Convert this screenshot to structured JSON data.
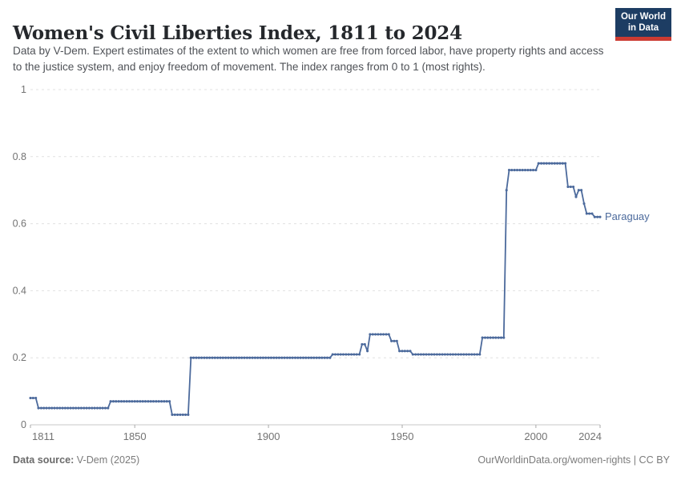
{
  "header": {
    "title": "Women's Civil Liberties Index, 1811 to 2024",
    "subtitle": "Data by V-Dem. Expert estimates of the extent to which women are free from forced labor, have property rights and access to the justice system, and enjoy freedom of movement. The index ranges from 0 to 1 (most rights)."
  },
  "logo": {
    "line1": "Our World",
    "line2": "in Data",
    "bg_color": "#1d3d63",
    "bar_color": "#cc3b32"
  },
  "footer": {
    "source_label": "Data source:",
    "source_value": " V-Dem (2025)",
    "right_text": "OurWorldinData.org/women-rights | CC BY"
  },
  "chart_data": {
    "type": "line",
    "title": "Women's Civil Liberties Index, 1811 to 2024",
    "xlabel": "",
    "ylabel": "",
    "xlim": [
      1811,
      2024
    ],
    "ylim": [
      0,
      1
    ],
    "x_ticks": [
      1811,
      1850,
      1900,
      1950,
      2000,
      2024
    ],
    "y_ticks": [
      "0",
      "0.2",
      "0.4",
      "0.6",
      "0.8",
      "1"
    ],
    "grid": "horizontal-dashed",
    "legend": "end-of-line-label",
    "colors": {
      "line": "#4C6A9C",
      "gridline": "#e0e0e0",
      "axis": "#c8c8c8",
      "tick": "#a8a8a8",
      "tick_label": "#737373"
    },
    "series": [
      {
        "name": "Paraguay",
        "color": "#4C6A9C",
        "segments": [
          {
            "from": 1811,
            "to": 1813,
            "value": 0.08
          },
          {
            "from": 1814,
            "to": 1840,
            "value": 0.05
          },
          {
            "from": 1841,
            "to": 1863,
            "value": 0.07
          },
          {
            "from": 1864,
            "to": 1870,
            "value": 0.03
          },
          {
            "from": 1871,
            "to": 1923,
            "value": 0.2
          },
          {
            "from": 1924,
            "to": 1934,
            "value": 0.21
          },
          {
            "from": 1935,
            "to": 1936,
            "value": 0.24
          },
          {
            "from": 1937,
            "to": 1937,
            "value": 0.22
          },
          {
            "from": 1938,
            "to": 1945,
            "value": 0.27
          },
          {
            "from": 1946,
            "to": 1948,
            "value": 0.25
          },
          {
            "from": 1949,
            "to": 1953,
            "value": 0.22
          },
          {
            "from": 1954,
            "to": 1979,
            "value": 0.21
          },
          {
            "from": 1980,
            "to": 1988,
            "value": 0.26
          },
          {
            "from": 1989,
            "to": 1989,
            "value": 0.7
          },
          {
            "from": 1990,
            "to": 2000,
            "value": 0.76
          },
          {
            "from": 2001,
            "to": 2011,
            "value": 0.78
          },
          {
            "from": 2012,
            "to": 2014,
            "value": 0.71
          },
          {
            "from": 2015,
            "to": 2015,
            "value": 0.68
          },
          {
            "from": 2016,
            "to": 2017,
            "value": 0.7
          },
          {
            "from": 2018,
            "to": 2018,
            "value": 0.66
          },
          {
            "from": 2019,
            "to": 2021,
            "value": 0.63
          },
          {
            "from": 2022,
            "to": 2024,
            "value": 0.62
          }
        ]
      }
    ]
  }
}
